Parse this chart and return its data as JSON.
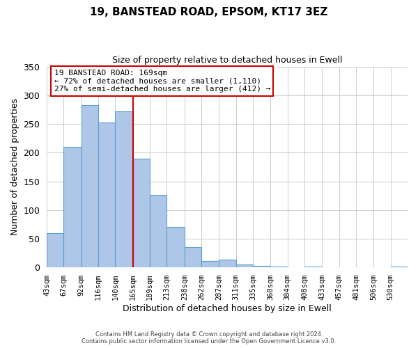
{
  "title": "19, BANSTEAD ROAD, EPSOM, KT17 3EZ",
  "subtitle": "Size of property relative to detached houses in Ewell",
  "xlabel": "Distribution of detached houses by size in Ewell",
  "ylabel": "Number of detached properties",
  "bar_labels": [
    "43sqm",
    "67sqm",
    "92sqm",
    "116sqm",
    "140sqm",
    "165sqm",
    "189sqm",
    "213sqm",
    "238sqm",
    "262sqm",
    "287sqm",
    "311sqm",
    "335sqm",
    "360sqm",
    "384sqm",
    "408sqm",
    "433sqm",
    "457sqm",
    "481sqm",
    "506sqm",
    "530sqm"
  ],
  "bar_values": [
    60,
    210,
    283,
    252,
    272,
    190,
    126,
    70,
    35,
    11,
    14,
    5,
    3,
    1,
    0,
    1,
    0,
    0,
    0,
    0,
    2
  ],
  "bar_color": "#aec6e8",
  "bar_edgecolor": "#5a9fd4",
  "bin_edges": [
    43,
    67,
    92,
    116,
    140,
    165,
    189,
    213,
    238,
    262,
    287,
    311,
    335,
    360,
    384,
    408,
    433,
    457,
    481,
    506,
    530,
    554
  ],
  "annotation_title": "19 BANSTEAD ROAD: 169sqm",
  "annotation_line1": "← 72% of detached houses are smaller (1,110)",
  "annotation_line2": "27% of semi-detached houses are larger (412) →",
  "annotation_box_color": "#ffffff",
  "annotation_box_edgecolor": "#cc0000",
  "vline_x": 165,
  "vline_color": "#cc0000",
  "ylim": [
    0,
    350
  ],
  "yticks": [
    0,
    50,
    100,
    150,
    200,
    250,
    300,
    350
  ],
  "footer1": "Contains HM Land Registry data © Crown copyright and database right 2024.",
  "footer2": "Contains public sector information licensed under the Open Government Licence v3.0.",
  "bg_color": "#ffffff",
  "grid_color": "#cccccc"
}
